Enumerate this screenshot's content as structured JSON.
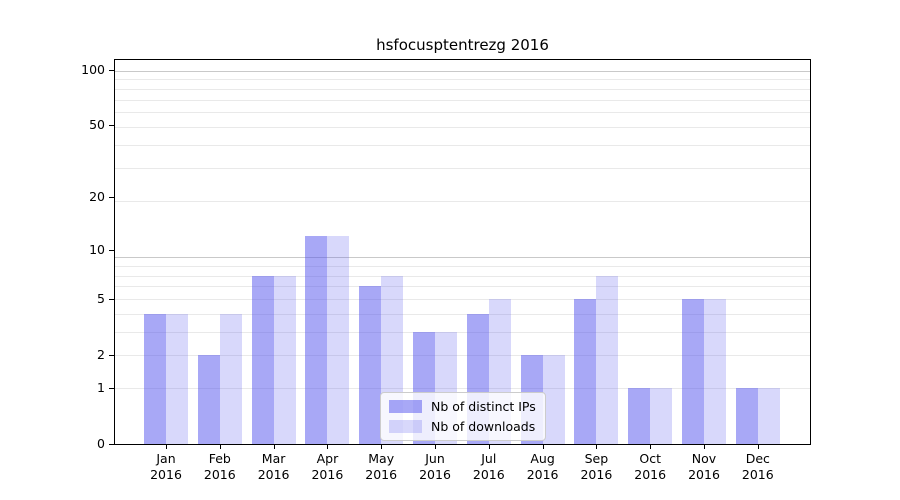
{
  "chart_data": {
    "type": "bar",
    "title": "hsfocusptentrezg 2016",
    "months": [
      "Jan",
      "Feb",
      "Mar",
      "Apr",
      "May",
      "Jun",
      "Jul",
      "Aug",
      "Sep",
      "Oct",
      "Nov",
      "Dec"
    ],
    "year": "2016",
    "series": [
      {
        "name": "Nb of distinct IPs",
        "values": [
          4,
          2,
          7,
          12,
          6,
          3,
          4,
          2,
          5,
          1,
          5,
          1
        ],
        "color": "rgba(85,85,238,0.51)",
        "hex_on_white": "#a8a8f4"
      },
      {
        "name": "Nb of downloads",
        "values": [
          4,
          4,
          7,
          12,
          7,
          3,
          5,
          2,
          7,
          1,
          5,
          1
        ],
        "color": "rgba(85,85,238,0.23)",
        "hex_on_white": "#d8d8f9"
      }
    ],
    "y_ticks": [
      0,
      1,
      2,
      5,
      10,
      20,
      50,
      100
    ],
    "y_scale": "log10(1+value)",
    "ylim": [
      0,
      115
    ],
    "xlabel": "",
    "ylabel": "",
    "grid": "horizontal, minor #e9e9e9 / major #c9c9c9, drawn under semi-transparent bars",
    "legend_position": "inside, lower-center",
    "colors": {
      "background": "#ffffff",
      "spine": "#000000",
      "grid_minor": "#e9e9e9",
      "grid_major": "#c9c9c9"
    }
  }
}
